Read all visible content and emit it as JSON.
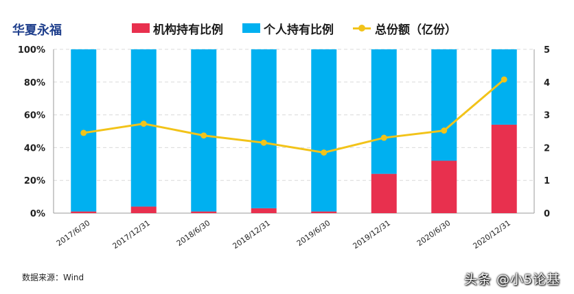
{
  "title": "华夏永福",
  "source": "数据来源：Wind",
  "watermark": "头条 @小5论基",
  "colors": {
    "institution": "#e8304e",
    "individual": "#00b0f0",
    "total": "#f2c319"
  },
  "chart_data": {
    "type": "bar",
    "categories": [
      "2017/6/30",
      "2017/12/31",
      "2018/6/30",
      "2018/12/31",
      "2019/6/30",
      "2019/12/31",
      "2020/6/30",
      "2020/12/31"
    ],
    "series": [
      {
        "name": "机构持有比例",
        "type": "bar",
        "axis": "left",
        "values": [
          1,
          4,
          1,
          3,
          1,
          24,
          32,
          54
        ]
      },
      {
        "name": "个人持有比例",
        "type": "bar",
        "axis": "left",
        "values": [
          99,
          96,
          99,
          97,
          99,
          76,
          68,
          46
        ]
      },
      {
        "name": "总份额（亿份）",
        "type": "line",
        "axis": "right",
        "values": [
          2.45,
          2.73,
          2.37,
          2.15,
          1.85,
          2.3,
          2.52,
          4.08
        ]
      }
    ],
    "stacked": true,
    "y_left": {
      "range": [
        0,
        100
      ],
      "ticks": [
        "0%",
        "20%",
        "40%",
        "60%",
        "80%",
        "100%"
      ]
    },
    "y_right": {
      "range": [
        0,
        5
      ],
      "ticks": [
        "0",
        "1",
        "2",
        "3",
        "4",
        "5"
      ]
    },
    "grid": true,
    "legend_position": "top"
  }
}
